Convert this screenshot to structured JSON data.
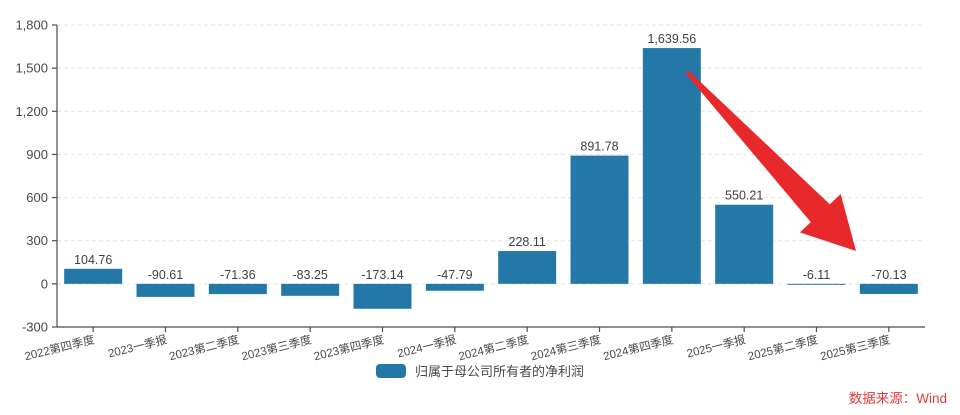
{
  "chart_data": {
    "type": "bar",
    "title": "",
    "xlabel": "",
    "ylabel": "",
    "categories": [
      "2022第四季度",
      "2023一季报",
      "2023第二季度",
      "2023第三季度",
      "2023第四季度",
      "2024一季报",
      "2024第二季度",
      "2024第三季度",
      "2024第四季度",
      "2025一季报",
      "2025第二季度",
      "2025第三季度"
    ],
    "series": [
      {
        "name": "归属于母公司所有者的净利润",
        "values": [
          104.76,
          -90.61,
          -71.36,
          -83.25,
          -173.14,
          -47.79,
          228.11,
          891.78,
          1639.56,
          550.21,
          -6.11,
          -70.13
        ]
      }
    ],
    "value_labels": [
      "104.76",
      "-90.61",
      "-71.36",
      "-83.25",
      "-173.14",
      "-47.79",
      "228.11",
      "891.78",
      "1,639.56",
      "550.21",
      "-6.11",
      "-70.13"
    ],
    "ylim": [
      -300,
      1800
    ],
    "yticks": [
      -300,
      0,
      300,
      600,
      900,
      1200,
      1500,
      1800
    ],
    "ytick_labels": [
      "-300",
      "0",
      "300",
      "600",
      "900",
      "1,200",
      "1,500",
      "1,800"
    ],
    "grid": "horizontal-dashed",
    "legend_position": "bottom-center",
    "bar_color": "#2478a7",
    "axis_color": "#4d4d4d",
    "grid_color": "#e3e3e3",
    "text_color": "#4a4a4a",
    "annotation_arrow": {
      "color": "#e8292b",
      "from": [
        687,
        72
      ],
      "to": [
        856,
        251
      ]
    }
  },
  "legend": {
    "label": "归属于母公司所有者的净利润"
  },
  "footer": {
    "source_label": "数据来源：Wind",
    "source_color": "#dc3c3c"
  }
}
